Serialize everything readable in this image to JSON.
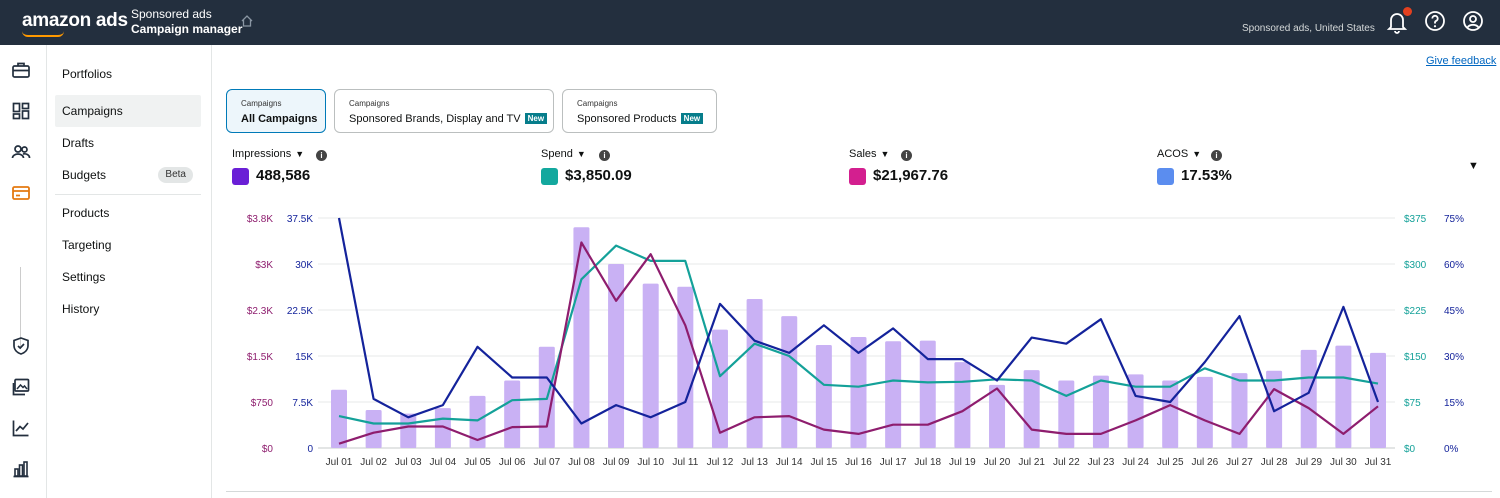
{
  "topbar": {
    "logo": "amazon ads",
    "app_line1": "Sponsored ads",
    "app_line2": "Campaign manager",
    "account": "Sponsored ads, United States"
  },
  "nav": {
    "items": [
      "Portfolios",
      "Campaigns",
      "Drafts",
      "Budgets",
      "Products",
      "Targeting",
      "Settings",
      "History"
    ],
    "beta_badge": "Beta",
    "active": "Campaigns"
  },
  "feedback_link": "Give feedback",
  "tabs": [
    {
      "small": "Campaigns",
      "title": "All Campaigns",
      "badge": ""
    },
    {
      "small": "Campaigns",
      "title": "Sponsored Brands, Display and TV",
      "badge": "New"
    },
    {
      "small": "Campaigns",
      "title": "Sponsored Products",
      "badge": "New"
    }
  ],
  "metrics": [
    {
      "label": "Impressions",
      "value": "488,586",
      "color": "#6a1fd6"
    },
    {
      "label": "Spend",
      "value": "$3,850.09",
      "color": "#13a89e"
    },
    {
      "label": "Sales",
      "value": "$21,967.76",
      "color": "#d31f8f"
    },
    {
      "label": "ACOS",
      "value": "17.53%",
      "color": "#5b8def"
    }
  ],
  "chart_data": {
    "type": "bar",
    "categories": [
      "Jul 01",
      "Jul 02",
      "Jul 03",
      "Jul 04",
      "Jul 05",
      "Jul 06",
      "Jul 07",
      "Jul 08",
      "Jul 09",
      "Jul 10",
      "Jul 11",
      "Jul 12",
      "Jul 13",
      "Jul 14",
      "Jul 15",
      "Jul 16",
      "Jul 17",
      "Jul 18",
      "Jul 19",
      "Jul 20",
      "Jul 21",
      "Jul 22",
      "Jul 23",
      "Jul 24",
      "Jul 25",
      "Jul 26",
      "Jul 27",
      "Jul 28",
      "Jul 29",
      "Jul 30",
      "Jul 31"
    ],
    "series": [
      {
        "name": "Impressions",
        "kind": "bar",
        "axis": "impressions",
        "color": "#c9b1f4",
        "values": [
          9500,
          6200,
          5600,
          6500,
          8500,
          11000,
          16500,
          36000,
          30000,
          26800,
          26300,
          19300,
          24300,
          21500,
          16800,
          18100,
          17400,
          17500,
          14000,
          10300,
          12700,
          11000,
          11800,
          12000,
          11000,
          11600,
          12200,
          12600,
          16000,
          16700,
          15500
        ]
      },
      {
        "name": "Spend",
        "kind": "line",
        "axis": "spend",
        "color": "#14a199",
        "values": [
          52,
          40,
          40,
          48,
          45,
          78,
          80,
          275,
          330,
          305,
          305,
          117,
          170,
          150,
          103,
          100,
          110,
          107,
          108,
          112,
          110,
          85,
          110,
          100,
          100,
          130,
          110,
          110,
          115,
          115,
          105
        ]
      },
      {
        "name": "Sales",
        "kind": "line",
        "axis": "sales",
        "color": "#8e1d6e",
        "values": [
          70,
          250,
          350,
          350,
          130,
          340,
          350,
          3350,
          2400,
          3160,
          2000,
          250,
          500,
          520,
          300,
          230,
          380,
          380,
          600,
          970,
          300,
          230,
          230,
          450,
          700,
          450,
          230,
          960,
          650,
          230,
          680
        ]
      },
      {
        "name": "ACOS",
        "kind": "line",
        "axis": "acos",
        "color": "#14239b",
        "values": [
          75,
          16,
          10,
          14,
          33,
          23,
          23,
          8,
          14,
          10,
          15,
          47,
          35,
          31,
          40,
          31,
          39,
          29,
          29,
          22,
          36,
          34,
          42,
          17,
          15,
          28,
          43,
          12,
          18,
          46,
          15
        ]
      }
    ],
    "axes": {
      "impressions": {
        "ticks": [
          "0",
          "7.5K",
          "15K",
          "22.5K",
          "30K",
          "37.5K"
        ],
        "ylim": [
          0,
          37500
        ],
        "side": "left",
        "color": "#14239b"
      },
      "sales": {
        "ticks": [
          "$0",
          "$750",
          "$1.5K",
          "$2.3K",
          "$3K",
          "$3.8K"
        ],
        "ylim": [
          0,
          3750
        ],
        "side": "left",
        "color": "#8e1d6e"
      },
      "spend": {
        "ticks": [
          "$0",
          "$75",
          "$150",
          "$225",
          "$300",
          "$375"
        ],
        "ylim": [
          0,
          375
        ],
        "side": "right",
        "color": "#14a199"
      },
      "acos": {
        "ticks": [
          "0%",
          "15%",
          "30%",
          "45%",
          "60%",
          "75%"
        ],
        "ylim": [
          0,
          75
        ],
        "side": "right",
        "color": "#14239b"
      }
    },
    "grid": true
  }
}
